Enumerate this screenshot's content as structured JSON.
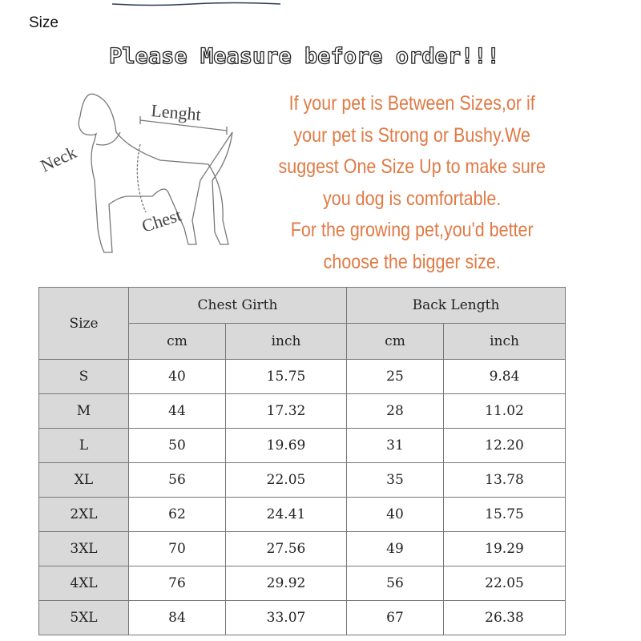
{
  "header": {
    "label": "Size"
  },
  "banner": {
    "title": "Please Measure before order!!!"
  },
  "diagram": {
    "labels": {
      "length": "Lenght",
      "neck": "Neck",
      "chest": "Chest"
    }
  },
  "notes": {
    "lines": [
      "If your pet is Between Sizes,or if",
      "your pet is Strong or Bushy.We",
      "suggest One Size Up to make sure",
      "you dog is comfortable.",
      "For the growing pet,you'd better",
      "choose the bigger size."
    ],
    "color": "#e07a45"
  },
  "table": {
    "size_header": "Size",
    "groups": [
      "Chest Girth",
      "Back Length"
    ],
    "units": [
      "cm",
      "inch",
      "cm",
      "inch"
    ],
    "rows": [
      [
        "S",
        "40",
        "15.75",
        "25",
        "9.84"
      ],
      [
        "M",
        "44",
        "17.32",
        "28",
        "11.02"
      ],
      [
        "L",
        "50",
        "19.69",
        "31",
        "12.20"
      ],
      [
        "XL",
        "56",
        "22.05",
        "35",
        "13.78"
      ],
      [
        "2XL",
        "62",
        "24.41",
        "40",
        "15.75"
      ],
      [
        "3XL",
        "70",
        "27.56",
        "49",
        "19.29"
      ],
      [
        "4XL",
        "76",
        "29.92",
        "56",
        "22.05"
      ],
      [
        "5XL",
        "84",
        "33.07",
        "67",
        "26.38"
      ]
    ]
  }
}
